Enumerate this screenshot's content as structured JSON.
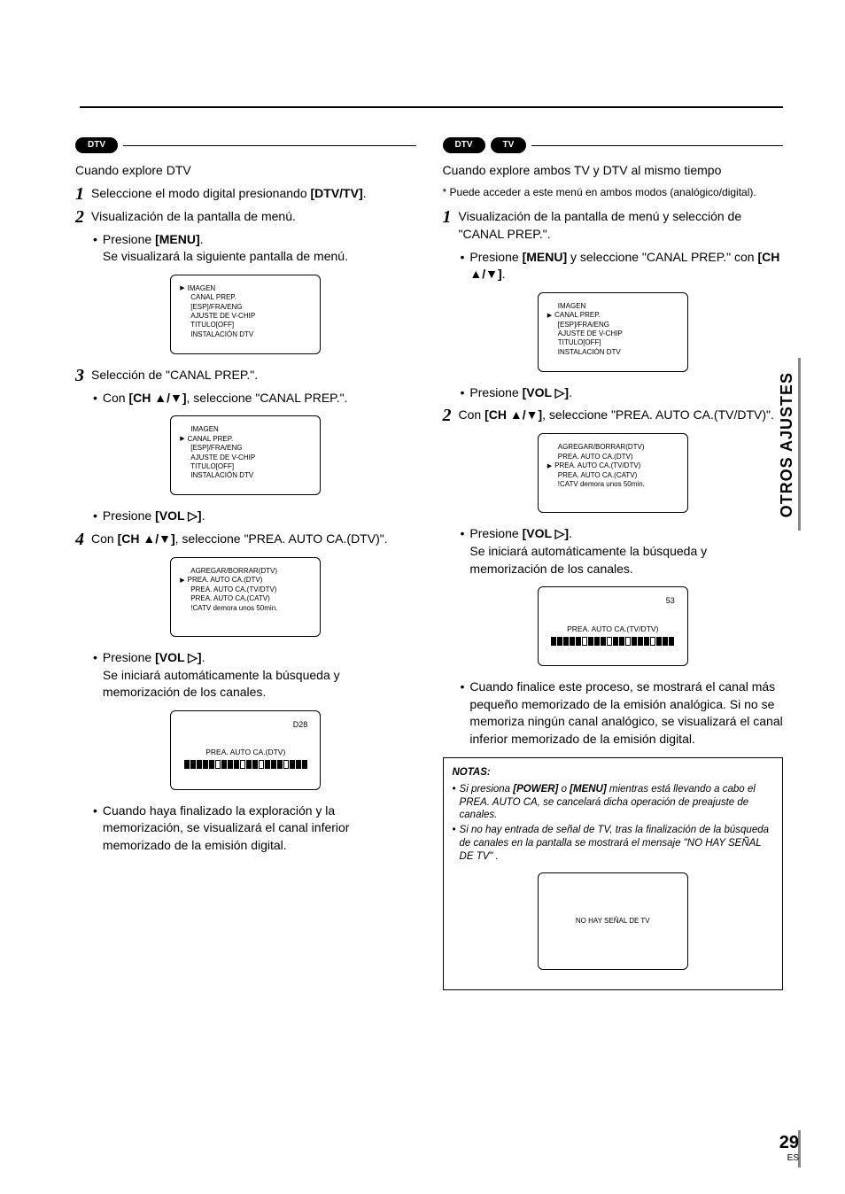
{
  "pills": {
    "dtv": "DTV",
    "tv": "TV"
  },
  "left": {
    "title": "Cuando explore DTV",
    "s1": "Seleccione el modo digital presionando ",
    "s1b": "[DTV/TV]",
    "s2": "Visualización de la pantalla de menú.",
    "s2_b1a": "Presione ",
    "s2_b1b": "[MENU]",
    "s2_b1c": "Se visualizará la siguiente pantalla de menú.",
    "menu": [
      "IMAGEN",
      "CANAL PREP.",
      "[ESP]/FRA/ENG",
      "AJUSTE DE V-CHIP",
      "TITULO[OFF]",
      "INSTALACIÓN DTV"
    ],
    "s3": "Selección de \"CANAL PREP.\".",
    "s3_b1a": "Con ",
    "s3_b1b": "[CH ▲/▼]",
    "s3_b1c": ", seleccione \"CANAL PREP.\".",
    "vol_a": "Presione ",
    "vol_b": "[VOL ▷]",
    "s4a": "Con ",
    "s4b": "[CH ▲/▼]",
    "s4c": ", seleccione \"PREA. AUTO CA.(DTV)\".",
    "prep_menu": [
      "AGREGAR/BORRAR(DTV)",
      "PREA. AUTO CA.(DTV)",
      "PREA. AUTO CA.(TV/DTV)",
      "PREA. AUTO CA.(CATV)",
      "!CATV demora unos 50min."
    ],
    "auto_text": "Se iniciará automáticamente la búsqueda y memorización de los canales.",
    "prog_num": "D28",
    "prog_label": "PREA. AUTO CA.(DTV)",
    "final": "Cuando haya finalizado la exploración y la memorización, se visualizará el canal inferior memorizado de la emisión digital."
  },
  "right": {
    "title": "Cuando explore ambos TV y DTV al mismo tiempo",
    "note": "Puede acceder a este menú en ambos modos (analógico/digital).",
    "s1": "Visualización de la pantalla de menú y selección de \"CANAL PREP.\".",
    "s1_b1a": "Presione ",
    "s1_b1b": "[MENU]",
    "s1_b1c": " y seleccione \"CANAL PREP.\" con ",
    "s1_b1d": "[CH ▲/▼]",
    "vol_a": "Presione ",
    "vol_b": "[VOL ▷]",
    "s2a": "Con ",
    "s2b": "[CH ▲/▼]",
    "s2c": ", seleccione \"PREA. AUTO CA.(TV/DTV)\".",
    "prep_menu": [
      "AGREGAR/BORRAR(DTV)",
      "PREA. AUTO CA.(DTV)",
      "PREA. AUTO CA.(TV/DTV)",
      "PREA. AUTO CA.(CATV)",
      "!CATV demora unos 50min."
    ],
    "auto_text": "Se iniciará automáticamente la búsqueda y memorización de los canales.",
    "prog_num": "53",
    "prog_label": "PREA. AUTO CA.(TV/DTV)",
    "final": "Cuando finalice este proceso, se mostrará el canal más pequeño memorizado de la emisión analógica. Si no se memoriza ningún canal analógico, se visualizará el canal inferior memorizado de la emisión digital.",
    "notes_title": "NOTAS:",
    "note1a": "Si presiona ",
    "note1b": "[POWER]",
    "note1c": " o ",
    "note1d": "[MENU]",
    "note1e": " mientras está llevando a cabo el PREA. AUTO CA, se cancelará dicha operación de preajuste de canales.",
    "note2": "Si no hay entrada de señal de TV, tras la finalización de la búsqueda de canales en la pantalla se mostrará el mensaje \"NO HAY SEÑAL DE TV\" .",
    "nosig": "NO HAY SEÑAL DE TV"
  },
  "side": "OTROS AJUSTES",
  "page": {
    "num": "29",
    "es": "ES"
  },
  "prog_fill": [
    1,
    1,
    1,
    1,
    1,
    0,
    1,
    1,
    1,
    0,
    1,
    1,
    0,
    1,
    1,
    1,
    0,
    1,
    1,
    1
  ]
}
